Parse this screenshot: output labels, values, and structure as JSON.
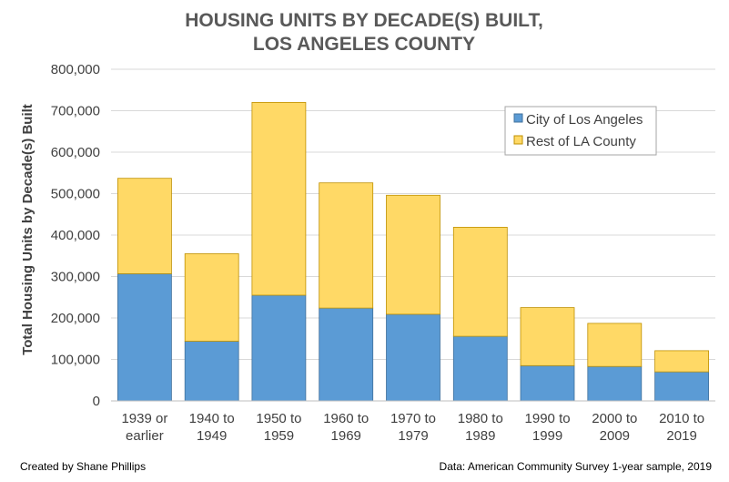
{
  "chart_data": {
    "type": "bar",
    "stacked": true,
    "title": [
      "HOUSING UNITS BY DECADE(S) BUILT,",
      "LOS ANGELES COUNTY"
    ],
    "ylabel": "Total Housing Units by Decade(s) Built",
    "xlabel": "",
    "ylim": [
      0,
      800000
    ],
    "yticks": [
      0,
      100000,
      200000,
      300000,
      400000,
      500000,
      600000,
      700000,
      800000
    ],
    "ytick_labels": [
      "0",
      "100,000",
      "200,000",
      "300,000",
      "400,000",
      "500,000",
      "600,000",
      "700,000",
      "800,000"
    ],
    "categories": [
      [
        "1939 or",
        "earlier"
      ],
      [
        "1940 to",
        "1949"
      ],
      [
        "1950 to",
        "1959"
      ],
      [
        "1960 to",
        "1969"
      ],
      [
        "1970 to",
        "1979"
      ],
      [
        "1980 to",
        "1989"
      ],
      [
        "1990 to",
        "1999"
      ],
      [
        "2000 to",
        "2009"
      ],
      [
        "2010 to",
        "2019"
      ]
    ],
    "series": [
      {
        "name": "City of Los Angeles",
        "color": "#5b9bd5",
        "values": [
          307000,
          144000,
          255000,
          224000,
          209000,
          156000,
          85000,
          83000,
          70000
        ]
      },
      {
        "name": "Rest of LA County",
        "color": "#ffd966",
        "values": [
          230000,
          211000,
          465000,
          302000,
          287000,
          263000,
          140000,
          104000,
          51000
        ]
      }
    ],
    "grid": true,
    "legend_position": "top-right"
  },
  "footer": {
    "credit": "Created by Shane Phillips",
    "source": "Data: American Community Survey 1-year sample, 2019"
  }
}
